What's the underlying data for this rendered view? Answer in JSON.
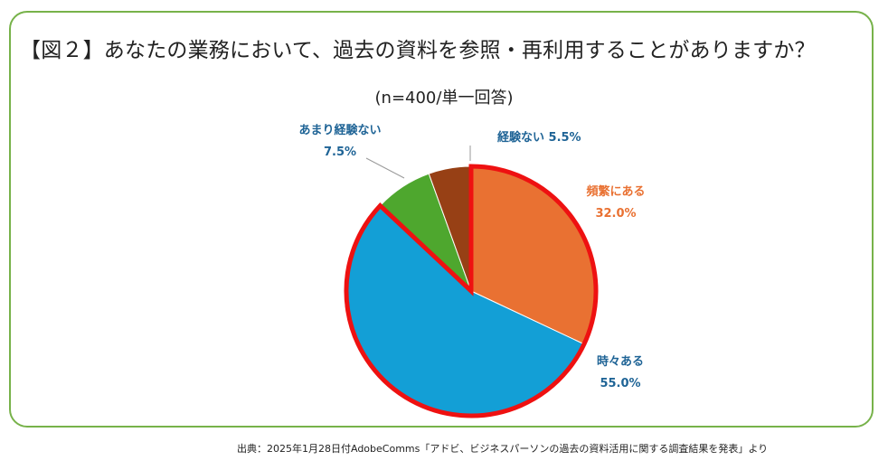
{
  "title": "【図２】あなたの業務において、過去の資料を参照・再利用することがありますか？",
  "subtitle": "(n=400/単一回答)",
  "source": "出典：2025年1月28日付AdobeComms「アドビ、ビジネスパーソンの過去の資料活用に関する調査結果を発表」より",
  "chart_data": {
    "type": "pie",
    "title": "【図２】あなたの業務において、過去の資料を参照・再利用することがありますか？",
    "subtitle": "(n=400/単一回答)",
    "categories": [
      "頻繁にある",
      "時々ある",
      "あまり経験ない",
      "経験ない"
    ],
    "values": [
      32.0,
      55.0,
      7.5,
      5.5
    ],
    "value_labels": [
      "32.0%",
      "55.0%",
      "7.5%",
      "5.5%"
    ],
    "colors": [
      "#e97132",
      "#139fd6",
      "#4ea72e",
      "#974015"
    ],
    "label_colors": [
      "#e97132",
      "#1f6496",
      "#1f6496",
      "#1f6496"
    ],
    "highlight_color": "#ee1111",
    "highlighted": [
      "頻繁にある",
      "時々ある"
    ],
    "start": "12 o'clock, clockwise"
  }
}
